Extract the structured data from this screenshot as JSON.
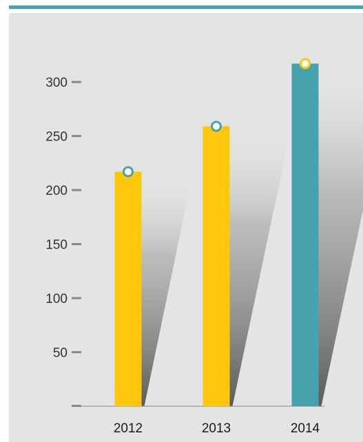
{
  "colors": {
    "accent": "#46a3ae",
    "bar_default": "#fec70c",
    "bar_highlight": "#46a3ae",
    "panel_bg": "#e3e4e5",
    "axis": "#888888"
  },
  "chart_data": {
    "type": "bar",
    "categories": [
      "2012",
      "2013",
      "2014"
    ],
    "values": [
      217,
      259,
      317
    ],
    "highlight_index": 2,
    "title": "",
    "xlabel": "",
    "ylabel": "",
    "ylim": [
      0,
      330
    ],
    "yticks": [
      50,
      100,
      150,
      200,
      250,
      300
    ],
    "ytick_labels": [
      "50",
      "100",
      "150",
      "200",
      "250",
      "300"
    ],
    "grid": false,
    "legend": "none"
  }
}
